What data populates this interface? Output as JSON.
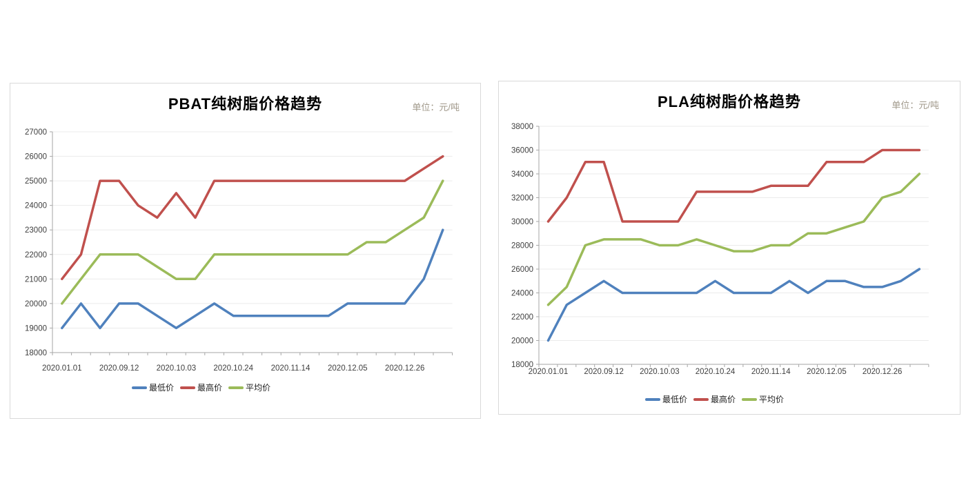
{
  "chart_data": [
    {
      "type": "line",
      "title": "PBAT纯树脂价格趋势",
      "unit_label": "单位：元/吨",
      "n_points": 21,
      "x_tick_labels": [
        "2020.01.01",
        "2020.09.12",
        "2020.10.03",
        "2020.10.24",
        "2020.11.14",
        "2020.12.05",
        "2020.12.26"
      ],
      "x_tick_indices": [
        0,
        3,
        6,
        9,
        12,
        15,
        18
      ],
      "ylim": [
        18000,
        27000
      ],
      "ytick_step": 1000,
      "grid": true,
      "legend_position": "bottom",
      "series": [
        {
          "name": "最低价",
          "color": "#4F81BD",
          "values": [
            19000,
            20000,
            19000,
            20000,
            20000,
            19500,
            19000,
            19500,
            20000,
            19500,
            19500,
            19500,
            19500,
            19500,
            19500,
            20000,
            20000,
            20000,
            20000,
            21000,
            23000
          ]
        },
        {
          "name": "最高价",
          "color": "#C0504D",
          "values": [
            21000,
            22000,
            25000,
            25000,
            24000,
            23500,
            24500,
            23500,
            25000,
            25000,
            25000,
            25000,
            25000,
            25000,
            25000,
            25000,
            25000,
            25000,
            25000,
            25500,
            26000
          ]
        },
        {
          "name": "平均价",
          "color": "#9BBB59",
          "values": [
            20000,
            21000,
            22000,
            22000,
            22000,
            21500,
            21000,
            21000,
            22000,
            22000,
            22000,
            22000,
            22000,
            22000,
            22000,
            22000,
            22500,
            22500,
            23000,
            23500,
            25000
          ]
        }
      ]
    },
    {
      "type": "line",
      "title": "PLA纯树脂价格趋势",
      "unit_label": "单位：元/吨",
      "n_points": 21,
      "x_tick_labels": [
        "2020.01.01",
        "2020.09.12",
        "2020.10.03",
        "2020.10.24",
        "2020.11.14",
        "2020.12.05",
        "2020.12.26"
      ],
      "x_tick_indices": [
        0,
        3,
        6,
        9,
        12,
        15,
        18
      ],
      "ylim": [
        18000,
        38000
      ],
      "ytick_step": 2000,
      "grid": true,
      "legend_position": "bottom",
      "series": [
        {
          "name": "最低价",
          "color": "#4F81BD",
          "values": [
            20000,
            23000,
            24000,
            25000,
            24000,
            24000,
            24000,
            24000,
            24000,
            25000,
            24000,
            24000,
            24000,
            25000,
            24000,
            25000,
            25000,
            24500,
            24500,
            25000,
            26000
          ]
        },
        {
          "name": "最高价",
          "color": "#C0504D",
          "values": [
            30000,
            32000,
            35000,
            35000,
            30000,
            30000,
            30000,
            30000,
            32500,
            32500,
            32500,
            32500,
            33000,
            33000,
            33000,
            35000,
            35000,
            35000,
            36000,
            36000,
            36000
          ]
        },
        {
          "name": "平均价",
          "color": "#9BBB59",
          "values": [
            23000,
            24500,
            28000,
            28500,
            28500,
            28500,
            28000,
            28000,
            28500,
            28000,
            27500,
            27500,
            28000,
            28000,
            29000,
            29000,
            29500,
            30000,
            32000,
            32500,
            34000
          ]
        }
      ]
    }
  ],
  "styles": {
    "grid_color": "#ebebeb",
    "axis_color": "#a6a6a6",
    "tick_label_color": "#3f3f3f"
  }
}
